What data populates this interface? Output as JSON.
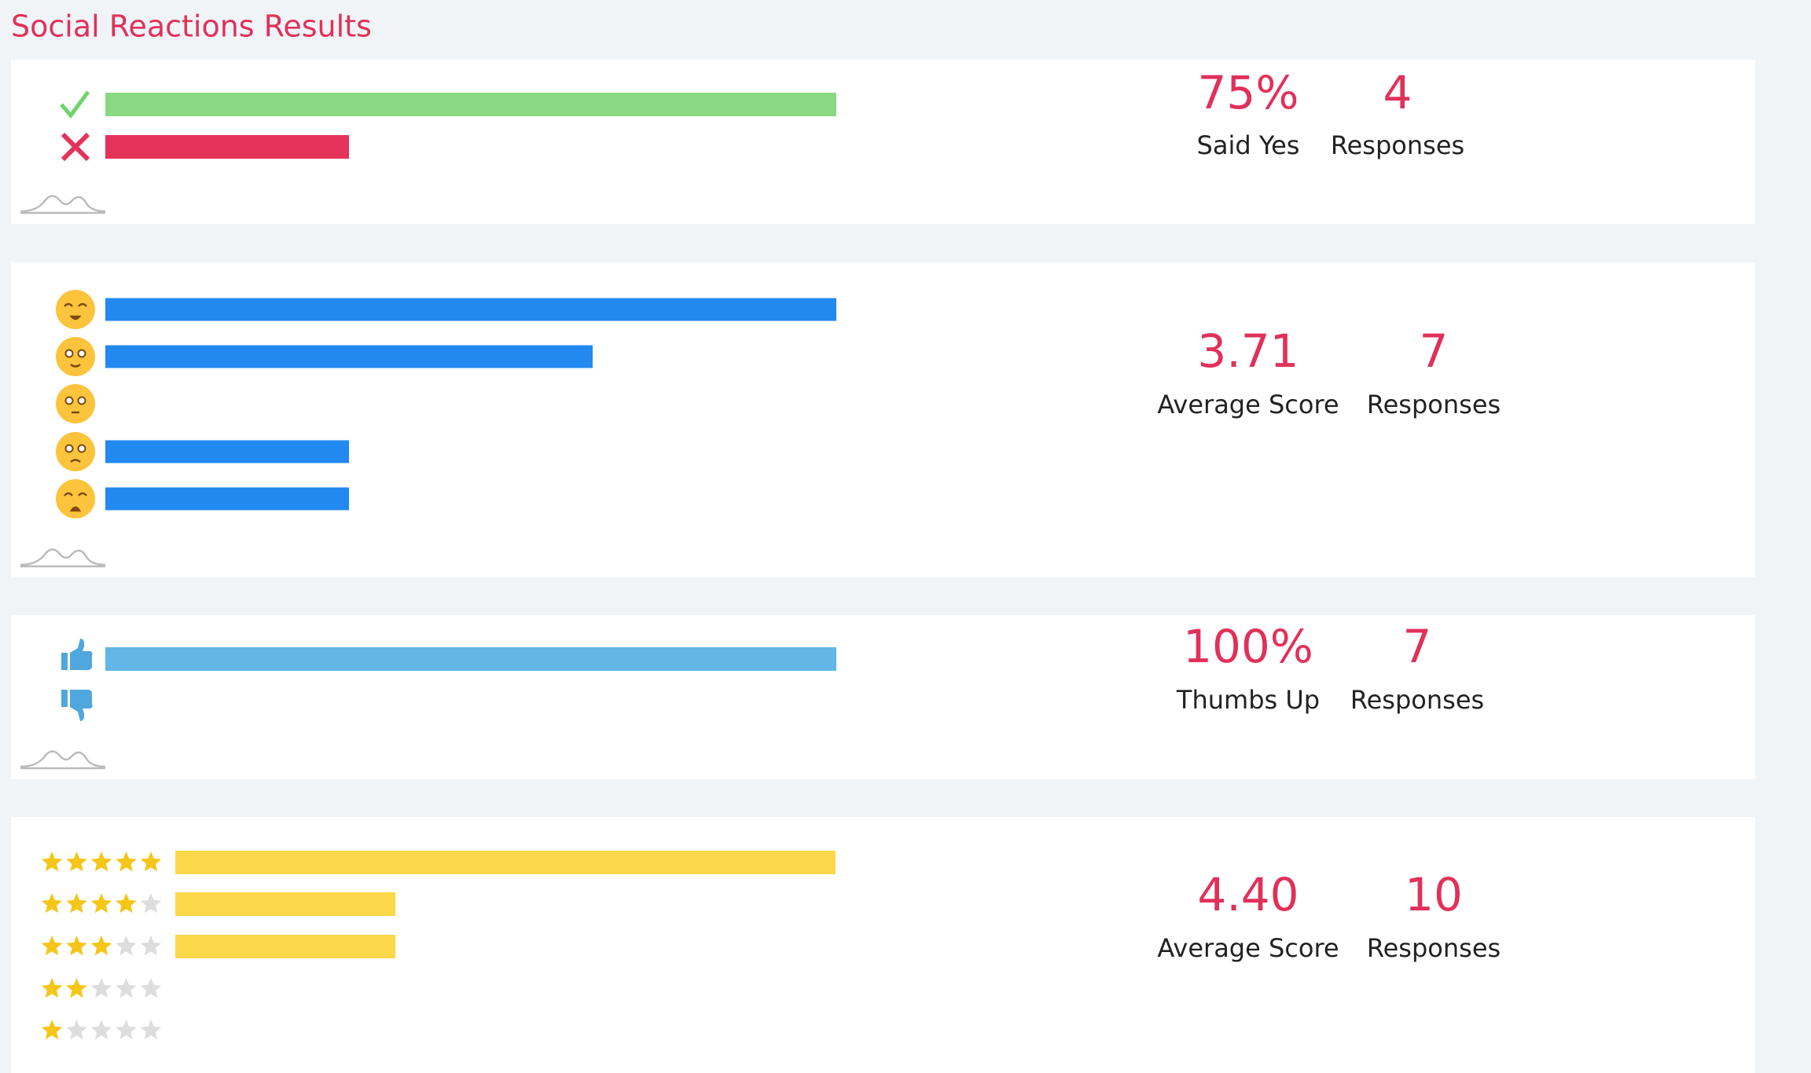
{
  "header": {
    "title": "Social Reactions Results"
  },
  "panels": [
    {
      "kind": "yes-no",
      "rows": [
        {
          "value": 3,
          "color": "#88d982"
        },
        {
          "value": 1,
          "color": "#e5325a"
        }
      ],
      "stats": [
        {
          "value": "75%",
          "label": "Said Yes"
        },
        {
          "value": "4",
          "label": "Responses"
        }
      ]
    },
    {
      "kind": "emoji",
      "rows": [
        {
          "value": 3,
          "color": "#2189f0"
        },
        {
          "value": 2,
          "color": "#2189f0"
        },
        {
          "value": 0,
          "color": "#2189f0"
        },
        {
          "value": 1,
          "color": "#2189f0"
        },
        {
          "value": 1,
          "color": "#2189f0"
        }
      ],
      "stats": [
        {
          "value": "3.71",
          "label": "Average Score"
        },
        {
          "value": "7",
          "label": "Responses"
        }
      ]
    },
    {
      "kind": "thumbs",
      "rows": [
        {
          "value": 7,
          "color": "#63b7e6"
        },
        {
          "value": 0,
          "color": "#63b7e6"
        }
      ],
      "stats": [
        {
          "value": "100%",
          "label": "Thumbs Up"
        },
        {
          "value": "7",
          "label": "Responses"
        }
      ]
    },
    {
      "kind": "stars",
      "rows": [
        {
          "value": 6,
          "color": "#fbd84a"
        },
        {
          "value": 2,
          "color": "#fbd84a"
        },
        {
          "value": 2,
          "color": "#fbd84a"
        },
        {
          "value": 0,
          "color": "#fbd84a"
        },
        {
          "value": 0,
          "color": "#fbd84a"
        }
      ],
      "stats": [
        {
          "value": "4.40",
          "label": "Average Score"
        },
        {
          "value": "10",
          "label": "Responses"
        }
      ]
    }
  ]
}
